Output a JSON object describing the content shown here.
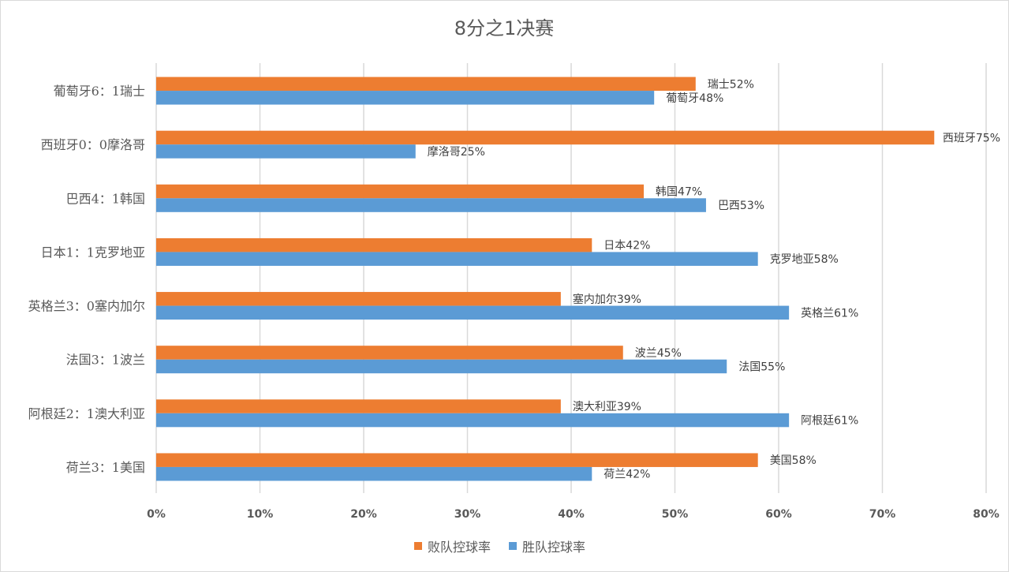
{
  "chart_data": {
    "type": "bar",
    "orientation": "horizontal",
    "title": "8分之1决赛",
    "categories": [
      "葡萄牙6：1瑞士",
      "西班牙0：0摩洛哥",
      "巴西4：1韩国",
      "日本1：1克罗地亚",
      "英格兰3：0塞内加尔",
      "法国3：1波兰",
      "阿根廷2：1澳大利亚",
      "荷兰3：1美国"
    ],
    "series": [
      {
        "name": "败队控球率",
        "color": "#ed7d31",
        "values": [
          52,
          75,
          47,
          42,
          39,
          45,
          39,
          58
        ],
        "labels": [
          "瑞士52%",
          "西班牙75%",
          "韩国47%",
          "日本42%",
          "塞内加尔39%",
          "波兰45%",
          "澳大利亚39%",
          "美国58%"
        ]
      },
      {
        "name": "胜队控球率",
        "color": "#5b9bd5",
        "values": [
          48,
          25,
          53,
          58,
          61,
          55,
          61,
          42
        ],
        "labels": [
          "葡萄牙48%",
          "摩洛哥25%",
          "巴西53%",
          "克罗地亚58%",
          "英格兰61%",
          "法国55%",
          "阿根廷61%",
          "荷兰42%"
        ]
      }
    ],
    "xlim": [
      0,
      80
    ],
    "xticks": [
      "0%",
      "10%",
      "20%",
      "30%",
      "40%",
      "50%",
      "60%",
      "70%",
      "80%"
    ],
    "grid": true,
    "legend": "bottom",
    "xlabel": "",
    "ylabel": ""
  }
}
